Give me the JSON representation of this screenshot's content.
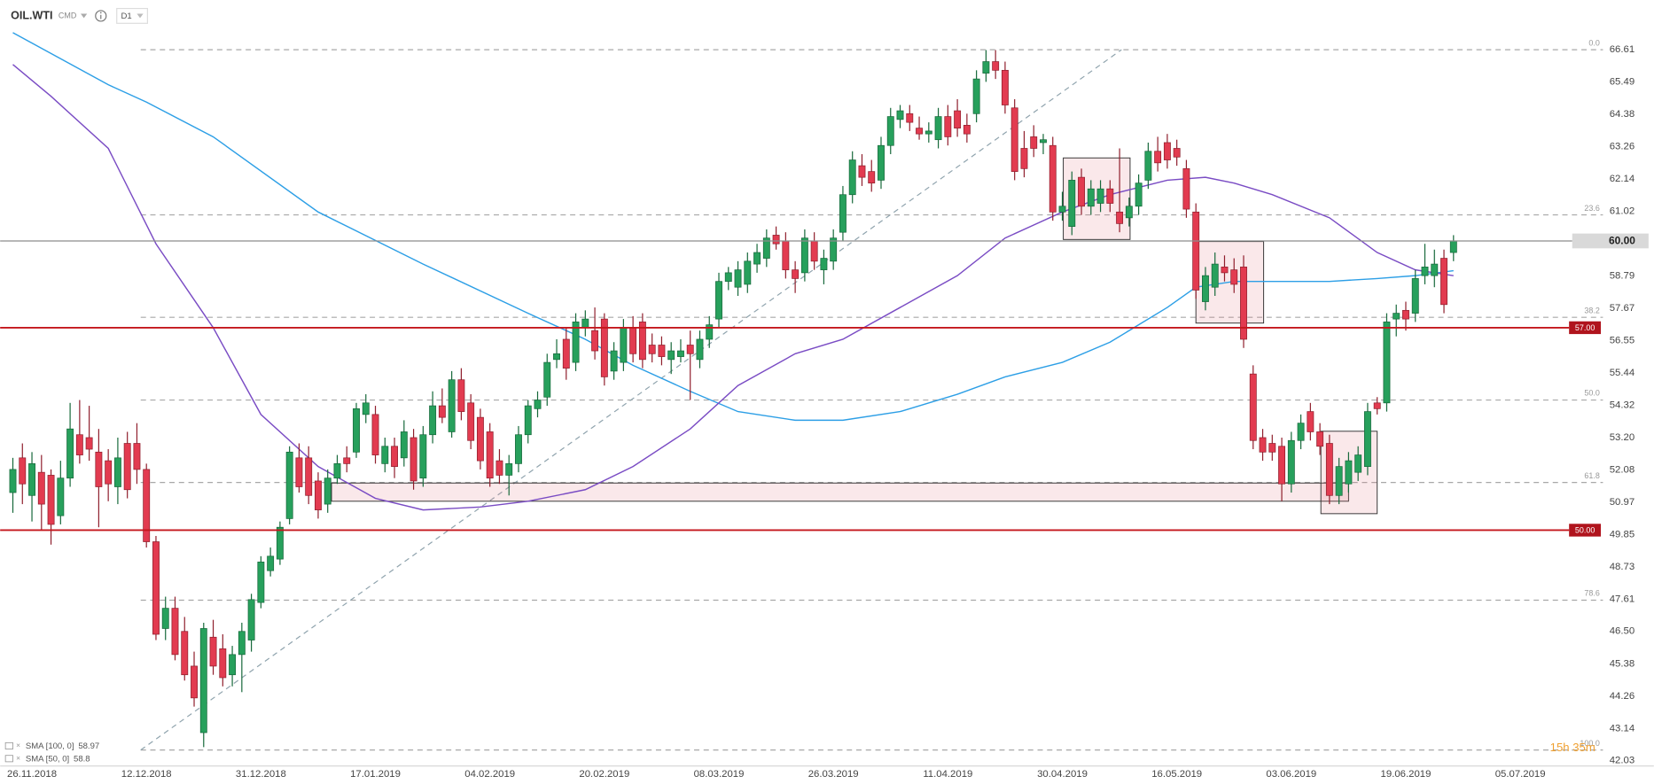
{
  "chart_data": {
    "type": "candlestick",
    "title": "OIL.WTI",
    "market": "CMD",
    "interval": "D1",
    "categories": [
      null,
      null,
      "26.11.2018",
      null,
      null,
      null,
      null,
      null,
      null,
      null,
      null,
      null,
      null,
      null,
      "12.12.2018",
      null,
      null,
      null,
      null,
      null,
      null,
      null,
      null,
      null,
      null,
      null,
      "31.12.2018",
      null,
      null,
      null,
      null,
      null,
      null,
      null,
      null,
      null,
      null,
      null,
      "17.01.2019",
      null,
      null,
      null,
      null,
      null,
      null,
      null,
      null,
      null,
      null,
      null,
      "04.02.2019",
      null,
      null,
      null,
      null,
      null,
      null,
      null,
      null,
      null,
      null,
      null,
      "20.02.2019",
      null,
      null,
      null,
      null,
      null,
      null,
      null,
      null,
      null,
      null,
      null,
      "08.03.2019",
      null,
      null,
      null,
      null,
      null,
      null,
      null,
      null,
      null,
      null,
      null,
      "26.03.2019",
      null,
      null,
      null,
      null,
      null,
      null,
      null,
      null,
      null,
      null,
      null,
      "11.04.2019",
      null,
      null,
      null,
      null,
      null,
      null,
      null,
      null,
      null,
      null,
      null,
      "30.04.2019",
      null,
      null,
      null,
      null,
      null,
      null,
      null,
      null,
      null,
      null,
      null,
      "16.05.2019",
      null,
      null,
      null,
      null,
      null,
      null,
      null,
      null,
      null,
      null,
      null,
      "03.06.2019",
      null,
      null,
      null,
      null,
      null,
      null,
      null,
      null,
      null,
      null,
      null,
      "19.06.2019",
      null,
      null,
      null,
      null,
      null,
      null,
      null,
      null,
      null,
      null,
      null,
      "05.07.2019",
      null,
      null,
      null,
      null
    ],
    "open": [
      51.3,
      52.5,
      51.2,
      52.0,
      51.9,
      50.5,
      51.8,
      53.3,
      53.2,
      52.7,
      52.4,
      51.5,
      53.0,
      53.0,
      52.1,
      49.6,
      46.6,
      47.3,
      46.5,
      45.3,
      43.0,
      46.3,
      45.9,
      45.0,
      45.7,
      46.2,
      47.5,
      48.6,
      49.0,
      50.4,
      52.5,
      52.5,
      51.7,
      50.9,
      51.8,
      52.5,
      52.7,
      54.0,
      54.0,
      52.3,
      52.9,
      52.5,
      53.2,
      51.8,
      53.3,
      54.3,
      53.4,
      55.2,
      54.4,
      53.9,
      53.4,
      52.4,
      51.9,
      52.3,
      53.3,
      54.2,
      54.6,
      55.9,
      56.6,
      55.8,
      57.0,
      56.9,
      57.3,
      55.5,
      55.8,
      57.0,
      57.2,
      56.4,
      56.4,
      55.9,
      56.0,
      56.4,
      55.9,
      56.6,
      57.3,
      58.6,
      58.4,
      58.5,
      59.2,
      59.4,
      60.2,
      60.0,
      59.0,
      58.9,
      60.0,
      59.0,
      59.3,
      60.3,
      61.6,
      62.6,
      62.4,
      62.1,
      63.3,
      64.2,
      64.4,
      63.9,
      63.7,
      63.5,
      64.3,
      64.5,
      64.0,
      64.4,
      65.8,
      66.2,
      65.9,
      64.6,
      63.2,
      63.6,
      63.4,
      63.3,
      61.0,
      60.5,
      62.2,
      61.2,
      61.3,
      61.8,
      61.0,
      60.8,
      61.2,
      62.1,
      63.1,
      63.4,
      63.2,
      62.5,
      61.0,
      57.9,
      58.4,
      59.1,
      59.0,
      59.1,
      55.4,
      53.2,
      53.0,
      52.9,
      51.6,
      53.1,
      54.1,
      53.4,
      53.0,
      51.2,
      51.6,
      52.0,
      52.2,
      54.4,
      54.4,
      57.3,
      57.6,
      57.5,
      58.8,
      58.8,
      59.4,
      59.6,
      null,
      null,
      null,
      null,
      null,
      null,
      null,
      null,
      null,
      null,
      null
    ],
    "high": [
      52.5,
      53.0,
      52.7,
      52.6,
      52.1,
      52.4,
      54.4,
      54.5,
      54.3,
      53.5,
      52.8,
      53.2,
      53.4,
      53.7,
      52.3,
      49.8,
      47.7,
      47.7,
      47.0,
      45.8,
      46.8,
      46.9,
      46.4,
      46.0,
      46.8,
      47.8,
      49.1,
      49.4,
      50.3,
      52.9,
      53.0,
      52.9,
      52.0,
      52.1,
      52.6,
      52.9,
      54.4,
      54.7,
      54.3,
      53.2,
      53.2,
      53.8,
      53.5,
      53.6,
      54.8,
      54.9,
      55.5,
      55.6,
      54.7,
      54.2,
      53.7,
      52.8,
      52.6,
      53.6,
      54.5,
      54.8,
      56.1,
      56.6,
      57.0,
      57.5,
      57.6,
      57.7,
      57.5,
      56.5,
      57.3,
      57.4,
      57.5,
      56.8,
      56.7,
      56.5,
      56.6,
      56.9,
      56.9,
      57.4,
      58.9,
      59.1,
      59.3,
      59.6,
      59.9,
      60.4,
      60.5,
      60.3,
      59.3,
      60.4,
      60.3,
      59.7,
      60.4,
      61.9,
      63.1,
      63.0,
      62.8,
      63.6,
      64.6,
      64.7,
      64.7,
      64.3,
      64.1,
      64.6,
      64.7,
      64.9,
      64.4,
      65.9,
      66.6,
      66.6,
      66.2,
      64.9,
      63.8,
      64.0,
      63.7,
      63.6,
      61.7,
      62.4,
      62.5,
      62.1,
      62.1,
      62.1,
      63.2,
      61.5,
      62.3,
      63.4,
      63.6,
      63.7,
      63.5,
      62.8,
      61.3,
      59.1,
      59.6,
      59.5,
      59.4,
      59.5,
      55.7,
      53.5,
      53.3,
      53.2,
      53.4,
      54.0,
      54.4,
      53.7,
      53.3,
      52.5,
      52.7,
      52.9,
      54.4,
      54.6,
      57.5,
      57.8,
      57.9,
      59.0,
      59.9,
      59.7,
      59.7,
      60.2,
      null,
      null,
      null,
      null,
      null,
      null,
      null,
      null,
      null,
      null,
      null
    ],
    "low": [
      50.6,
      50.9,
      50.3,
      50.0,
      49.5,
      50.2,
      51.5,
      52.3,
      52.4,
      50.1,
      51.0,
      50.9,
      51.1,
      51.6,
      49.4,
      46.2,
      46.2,
      45.5,
      44.8,
      43.9,
      42.5,
      45.0,
      44.6,
      44.6,
      44.4,
      45.8,
      47.3,
      48.4,
      48.8,
      50.2,
      51.3,
      50.9,
      50.4,
      50.6,
      51.6,
      52.0,
      52.5,
      53.7,
      52.3,
      52.0,
      51.8,
      52.2,
      51.4,
      51.5,
      53.0,
      53.7,
      53.2,
      53.8,
      52.8,
      52.1,
      51.5,
      51.6,
      51.2,
      52.0,
      53.0,
      53.9,
      54.3,
      55.6,
      55.2,
      55.5,
      56.7,
      55.9,
      55.0,
      55.2,
      55.5,
      55.8,
      55.6,
      55.8,
      55.7,
      55.4,
      55.8,
      54.5,
      55.6,
      56.3,
      57.0,
      58.3,
      58.1,
      58.2,
      58.9,
      59.1,
      59.7,
      58.7,
      58.2,
      58.6,
      59.0,
      58.5,
      59.0,
      60.0,
      61.3,
      61.9,
      61.7,
      61.8,
      63.0,
      63.9,
      63.8,
      63.5,
      63.4,
      63.2,
      63.3,
      63.6,
      63.4,
      64.1,
      65.5,
      65.6,
      64.4,
      62.1,
      62.2,
      62.9,
      63.0,
      60.7,
      60.7,
      60.2,
      60.9,
      60.9,
      61.0,
      61.0,
      60.3,
      60.5,
      60.9,
      61.8,
      62.4,
      62.5,
      62.6,
      60.8,
      58.0,
      57.6,
      58.1,
      58.6,
      58.2,
      56.3,
      52.8,
      52.4,
      52.4,
      51.0,
      51.3,
      52.8,
      53.1,
      52.6,
      50.9,
      50.9,
      51.3,
      51.7,
      51.9,
      54.0,
      54.1,
      56.7,
      56.9,
      57.2,
      58.5,
      58.4,
      57.5,
      59.3,
      null,
      null,
      null,
      null,
      null,
      null,
      null,
      null,
      null,
      null,
      null
    ],
    "close": [
      52.1,
      51.6,
      52.3,
      50.9,
      50.2,
      51.8,
      53.5,
      52.6,
      52.8,
      51.5,
      51.6,
      52.5,
      51.4,
      52.1,
      49.6,
      46.4,
      47.3,
      45.7,
      45.0,
      44.2,
      46.6,
      45.3,
      44.9,
      45.7,
      46.5,
      47.6,
      48.9,
      49.1,
      50.1,
      52.7,
      51.5,
      51.2,
      50.7,
      51.8,
      52.3,
      52.3,
      54.2,
      54.4,
      52.6,
      52.9,
      52.2,
      53.4,
      51.7,
      53.3,
      54.3,
      53.9,
      55.2,
      54.1,
      53.1,
      52.4,
      51.8,
      51.9,
      52.3,
      53.3,
      54.3,
      54.5,
      55.8,
      56.1,
      55.6,
      57.2,
      57.3,
      56.2,
      55.3,
      56.2,
      57.0,
      56.1,
      55.9,
      56.1,
      56.0,
      56.2,
      56.2,
      56.1,
      56.6,
      57.1,
      58.6,
      58.9,
      59.0,
      59.3,
      59.6,
      60.1,
      59.9,
      59.0,
      58.7,
      60.1,
      59.3,
      59.4,
      60.1,
      61.6,
      62.8,
      62.2,
      62.0,
      63.3,
      64.3,
      64.5,
      64.1,
      63.7,
      63.8,
      64.3,
      63.6,
      63.9,
      63.7,
      65.6,
      66.2,
      65.9,
      64.7,
      62.4,
      62.5,
      63.2,
      63.5,
      61.0,
      61.2,
      62.1,
      61.2,
      61.8,
      61.8,
      61.3,
      60.6,
      61.2,
      62.0,
      63.1,
      62.7,
      62.8,
      62.9,
      61.1,
      58.3,
      58.8,
      59.2,
      58.9,
      58.5,
      56.6,
      53.1,
      52.7,
      52.7,
      51.6,
      53.1,
      53.7,
      53.4,
      52.9,
      51.2,
      52.2,
      52.4,
      52.6,
      54.1,
      54.2,
      57.2,
      57.5,
      57.3,
      58.7,
      59.1,
      59.2,
      57.8,
      60.0,
      null,
      null,
      null,
      null,
      null,
      null,
      null,
      null,
      null,
      null,
      null
    ],
    "up_color": "#27a05c",
    "down_color": "#e23b50",
    "ylim": [
      41.81,
      68.33
    ],
    "yticks": [
      66.61,
      65.49,
      64.38,
      63.26,
      62.14,
      61.02,
      58.79,
      57.67,
      56.55,
      55.44,
      54.32,
      {
        "value": 53.2,
        "label": "53.20"
      },
      52.08,
      50.97,
      49.85,
      48.73,
      47.61,
      {
        "value": 46.5,
        "label": "46.50"
      },
      45.38,
      44.26,
      43.14,
      42.03
    ],
    "grid": false,
    "indicators": [
      {
        "name": "SMA [100, 0]",
        "last": 58.97,
        "color": "#2d9fe6",
        "x": [
          0,
          10,
          14,
          21,
          32,
          43,
          54,
          60,
          65,
          71,
          76,
          82,
          87,
          93,
          99,
          104,
          110,
          115,
          121,
          124,
          128,
          132,
          138,
          143,
          147,
          151
        ],
        "values": [
          67.2,
          65.4,
          64.8,
          63.6,
          61.0,
          59.2,
          57.5,
          56.6,
          55.7,
          54.8,
          54.1,
          53.8,
          53.8,
          54.1,
          54.7,
          55.3,
          55.8,
          56.5,
          57.7,
          58.4,
          58.6,
          58.6,
          58.6,
          58.7,
          58.8,
          58.97
        ]
      },
      {
        "name": "SMA [50, 0]",
        "last": 58.8,
        "color": "#7a4cc4",
        "x": [
          0,
          4,
          10,
          15,
          21,
          26,
          32,
          38,
          43,
          49,
          54,
          60,
          65,
          71,
          76,
          82,
          87,
          93,
          99,
          104,
          110,
          115,
          121,
          125,
          128,
          132,
          138,
          143,
          147,
          151
        ],
        "values": [
          66.1,
          65.0,
          63.2,
          59.9,
          57.0,
          54.0,
          52.2,
          51.1,
          50.7,
          50.8,
          51.0,
          51.4,
          52.2,
          53.5,
          55.0,
          56.1,
          56.6,
          57.7,
          58.8,
          60.1,
          61.0,
          61.6,
          62.1,
          62.2,
          62.0,
          61.6,
          60.8,
          59.6,
          59.0,
          58.8
        ]
      }
    ],
    "hlines": [
      {
        "value": 57,
        "label": "57.00",
        "color": "#c4161c"
      },
      {
        "value": 50,
        "label": "50.00",
        "color": "#c4161c"
      }
    ],
    "last_price": {
      "value": 60,
      "label": "60.00",
      "color": "#8c8c8c"
    },
    "trendline": {
      "from": [
        13.4,
        42.4
      ],
      "to": [
        116.2,
        66.61
      ]
    },
    "fibonacci": {
      "levels": [
        {
          "label": "0.0",
          "price": 66.61
        },
        {
          "label": "23.6",
          "price": 60.9
        },
        {
          "label": "38.2",
          "price": 57.36
        },
        {
          "label": "50.0",
          "price": 54.5
        },
        {
          "label": "61.8",
          "price": 51.65
        },
        {
          "label": "78.6",
          "price": 47.58
        },
        {
          "label": "100.0",
          "price": 42.4
        }
      ]
    },
    "zones": [
      {
        "x": [
          110.1,
          117.1
        ],
        "y": [
          60.05,
          62.87
        ]
      },
      {
        "x": [
          124,
          131.1
        ],
        "y": [
          57.16,
          59.98
        ]
      },
      {
        "x": [
          33.4,
          140
        ],
        "y": [
          51.0,
          51.63
        ]
      },
      {
        "x": [
          137.1,
          143
        ],
        "y": [
          50.57,
          53.42
        ]
      }
    ],
    "countdown": "15h 35m"
  }
}
